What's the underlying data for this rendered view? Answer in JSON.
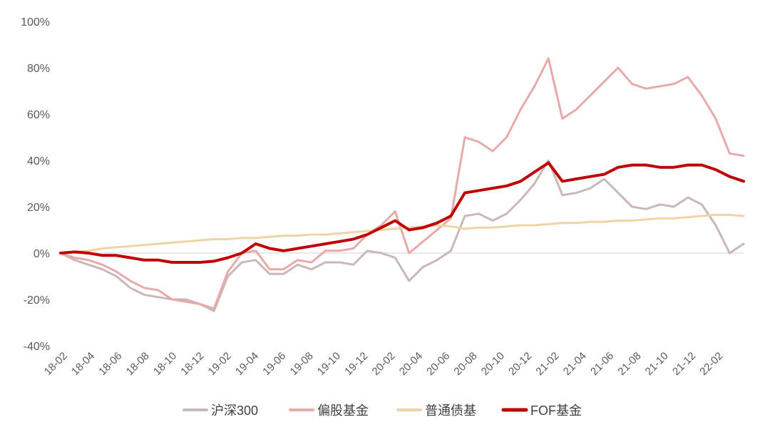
{
  "chart_data": {
    "type": "line",
    "title": "",
    "xlabel": "",
    "ylabel": "",
    "ylim": [
      -40,
      100
    ],
    "yticks": [
      -40,
      -20,
      0,
      20,
      40,
      60,
      80,
      100
    ],
    "ytick_labels": [
      "-40%",
      "-20%",
      "0%",
      "20%",
      "40%",
      "60%",
      "80%",
      "100%"
    ],
    "xtick_labels": [
      "18-02",
      "18-04",
      "18-06",
      "18-08",
      "18-10",
      "18-12",
      "19-02",
      "19-04",
      "19-06",
      "19-08",
      "19-10",
      "19-12",
      "20-02",
      "20-04",
      "20-06",
      "20-08",
      "20-10",
      "20-12",
      "21-02",
      "21-04",
      "21-06",
      "21-08",
      "21-10",
      "21-12",
      "22-02"
    ],
    "grid": false,
    "legend_position": "bottom",
    "x": [
      "18-02",
      "18-03",
      "18-04",
      "18-05",
      "18-06",
      "18-07",
      "18-08",
      "18-09",
      "18-10",
      "18-11",
      "18-12",
      "19-01",
      "19-02",
      "19-03",
      "19-04",
      "19-05",
      "19-06",
      "19-07",
      "19-08",
      "19-09",
      "19-10",
      "19-11",
      "19-12",
      "20-01",
      "20-02",
      "20-03",
      "20-04",
      "20-05",
      "20-06",
      "20-07",
      "20-08",
      "20-09",
      "20-10",
      "20-11",
      "20-12",
      "21-01",
      "21-02",
      "21-03",
      "21-04",
      "21-05",
      "21-06",
      "21-07",
      "21-08",
      "21-09",
      "21-10",
      "21-11",
      "21-12",
      "22-01",
      "22-02",
      "22-03"
    ],
    "series": [
      {
        "name": "沪深300",
        "color": "#c9b8b8",
        "width": 3,
        "values": [
          0,
          -3,
          -5,
          -7,
          -10,
          -15,
          -18,
          -19,
          -20,
          -20,
          -22,
          -25,
          -10,
          -4,
          -3,
          -9,
          -9,
          -5,
          -7,
          -4,
          -4,
          -5,
          1,
          0,
          -2,
          -12,
          -6,
          -3,
          1,
          16,
          17,
          14,
          17,
          23,
          30,
          40,
          25,
          26,
          28,
          32,
          26,
          20,
          19,
          21,
          20,
          24,
          21,
          12,
          0,
          4
        ]
      },
      {
        "name": "偏股基金",
        "color": "#e8a9a9",
        "width": 3,
        "values": [
          0,
          -2,
          -3,
          -5,
          -8,
          -12,
          -15,
          -16,
          -20,
          -21,
          -22,
          -24,
          -8,
          0,
          1,
          -7,
          -7,
          -3,
          -4,
          1,
          1,
          2,
          8,
          12,
          18,
          0,
          5,
          10,
          15,
          50,
          48,
          44,
          50,
          62,
          72,
          84,
          58,
          62,
          68,
          74,
          80,
          73,
          71,
          72,
          73,
          76,
          68,
          58,
          43,
          42
        ]
      },
      {
        "name": "普通债基",
        "color": "#f0d4a8",
        "width": 3,
        "values": [
          0,
          0.5,
          1,
          2,
          2.5,
          3,
          3.5,
          4,
          4.5,
          5,
          5.5,
          6,
          6,
          6.5,
          6.5,
          7,
          7.5,
          7.5,
          8,
          8,
          8.5,
          9,
          9.5,
          10,
          10.5,
          11,
          11.5,
          12,
          11.5,
          10.5,
          11,
          11,
          11.5,
          12,
          12,
          12.5,
          13,
          13,
          13.5,
          13.5,
          14,
          14,
          14.5,
          15,
          15,
          15.5,
          16,
          16.5,
          16.5,
          16
        ]
      },
      {
        "name": "FOF基金",
        "color": "#c00000",
        "width": 4,
        "values": [
          0,
          0.5,
          0,
          -1,
          -1,
          -2,
          -3,
          -3,
          -4,
          -4,
          -4,
          -3.5,
          -2,
          0,
          4,
          2,
          1,
          2,
          3,
          4,
          5,
          6,
          8,
          11,
          14,
          10,
          11,
          13,
          16,
          26,
          27,
          28,
          29,
          31,
          35,
          39,
          31,
          32,
          33,
          34,
          37,
          38,
          38,
          37,
          37,
          38,
          38,
          36,
          33,
          31
        ]
      }
    ]
  }
}
